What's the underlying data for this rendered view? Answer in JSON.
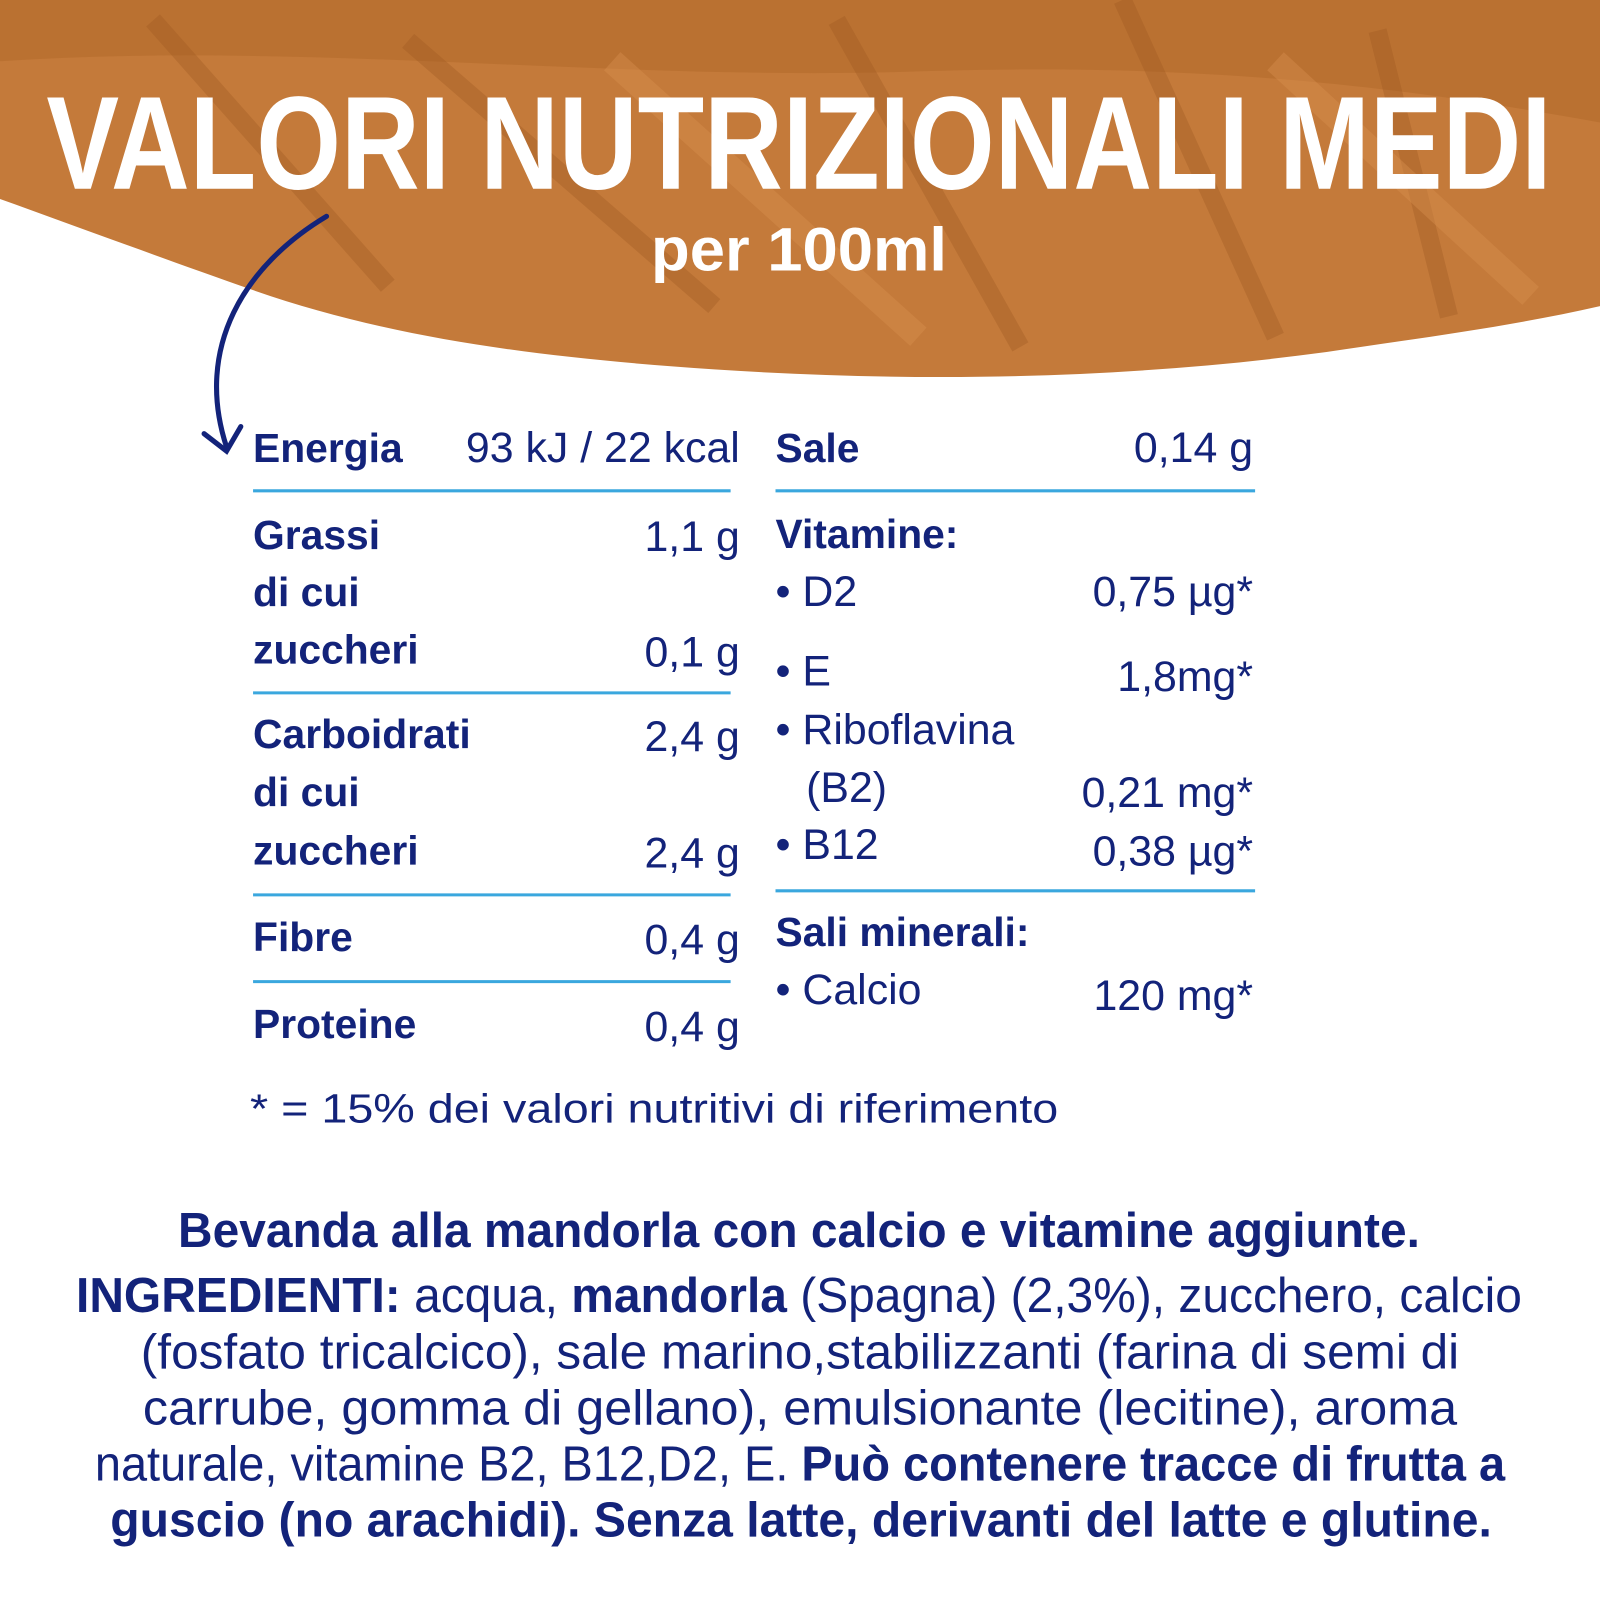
{
  "header": {
    "title": "VALORI NUTRIZIONALI MEDI",
    "subtitle": "per 100ml",
    "brush_color": "#c47a3a"
  },
  "colors": {
    "text": "#13237a",
    "divider": "#3aa7de"
  },
  "table": {
    "left": {
      "energia": {
        "label": "Energia",
        "value": "93 kJ / 22 kcal"
      },
      "grassi": {
        "label": "Grassi",
        "value": "1,1 g"
      },
      "grassi_dicui": {
        "label1": "di cui",
        "label2": "zuccheri",
        "value": "0,1 g"
      },
      "carboidrati": {
        "label": "Carboidrati",
        "value": "2,4 g"
      },
      "carb_dicui": {
        "label1": "di cui",
        "label2": "zuccheri",
        "value": "2,4 g"
      },
      "fibre": {
        "label": "Fibre",
        "value": "0,4 g"
      },
      "proteine": {
        "label": "Proteine",
        "value": "0,4 g"
      }
    },
    "right": {
      "sale": {
        "label": "Sale",
        "value": "0,14 g"
      },
      "vitamine": {
        "heading": "Vitamine:",
        "items": [
          {
            "label": "• D2",
            "value": "0,75 µg*"
          },
          {
            "label": "• E",
            "value": "1,8mg*"
          },
          {
            "label": "• Riboflavina",
            "label2": "(B2)",
            "value": "0,21 mg*"
          },
          {
            "label": "• B12",
            "value": "0,38 µg*"
          }
        ]
      },
      "minerali": {
        "heading": "Sali minerali:",
        "items": [
          {
            "label": "• Calcio",
            "value": "120 mg*"
          }
        ]
      }
    },
    "footnote": "* = 15% dei valori nutritivi di riferimento"
  },
  "ingredients": {
    "product": "Bevanda alla mandorla con calcio e vitamine aggiunte.",
    "lines": [
      {
        "segments": [
          {
            "text": "INGREDIENTI: ",
            "bold": true
          },
          {
            "text": "acqua, ",
            "bold": false
          },
          {
            "text": "mandorla",
            "bold": true
          },
          {
            "text": " (Spagna) (2,3%), zucchero, calcio",
            "bold": false
          }
        ]
      },
      {
        "segments": [
          {
            "text": "(fosfato tricalcico), sale marino,stabilizzanti (farina di semi di",
            "bold": false
          }
        ]
      },
      {
        "segments": [
          {
            "text": "carrube, gomma di gellano), emulsionante (lecitine), aroma",
            "bold": false
          }
        ]
      },
      {
        "segments": [
          {
            "text": "naturale, vitamine B2, B12,D2, E. ",
            "bold": false
          },
          {
            "text": "Può contenere tracce di frutta a",
            "bold": true
          }
        ]
      },
      {
        "segments": [
          {
            "text": "guscio (no arachidi). Senza latte, derivanti del latte e glutine.",
            "bold": true
          }
        ]
      }
    ]
  }
}
